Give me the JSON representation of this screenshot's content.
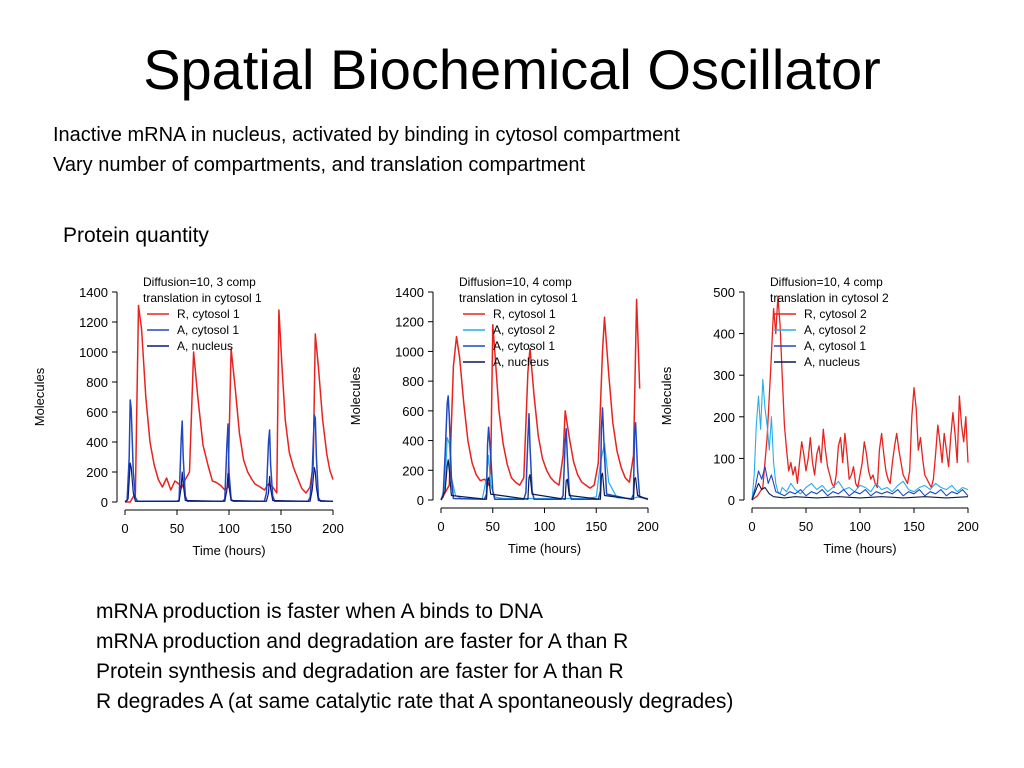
{
  "title": "Spatial Biochemical Oscillator",
  "intro_lines": [
    "Inactive mRNA in nucleus, activated by binding in cytosol compartment",
    "Vary number of compartments, and translation compartment"
  ],
  "section_label": "Protein quantity",
  "notes": [
    "mRNA production is faster when A binds to DNA",
    "mRNA production and degradation are faster for A than R",
    "Protein synthesis and degradation are faster for A than R",
    "R degrades A (at same catalytic rate that A spontaneously degrades)"
  ],
  "chart_data": [
    {
      "type": "line",
      "annotation": [
        "Diffusion=10, 3 comp",
        "translation in cytosol 1"
      ],
      "xlabel": "Time (hours)",
      "ylabel": "Molecules",
      "xlim": [
        0,
        200
      ],
      "ylim": [
        0,
        1400
      ],
      "xticks": [
        0,
        50,
        100,
        150,
        200
      ],
      "yticks": [
        0,
        200,
        400,
        600,
        800,
        1000,
        1200,
        1400
      ],
      "legend_position": "top-left",
      "series": [
        {
          "name": "R, cytosol 1",
          "color": "#e8231f",
          "width": 1.5,
          "x": [
            0,
            5,
            10,
            13,
            16,
            20,
            24,
            28,
            32,
            36,
            40,
            44,
            48,
            52,
            54,
            58,
            62,
            66,
            70,
            75,
            80,
            84,
            88,
            92,
            96,
            99,
            102,
            106,
            110,
            114,
            118,
            122,
            125,
            130,
            134,
            138,
            142,
            146,
            148,
            151,
            154,
            158,
            162,
            166,
            170,
            174,
            178,
            181,
            183,
            186,
            190,
            194,
            197,
            200
          ],
          "y": [
            0,
            0,
            60,
            1310,
            1150,
            700,
            400,
            250,
            150,
            100,
            160,
            80,
            140,
            120,
            90,
            150,
            200,
            1000,
            700,
            380,
            240,
            140,
            130,
            110,
            80,
            100,
            1020,
            760,
            460,
            280,
            200,
            150,
            120,
            100,
            80,
            120,
            100,
            60,
            1280,
            900,
            550,
            330,
            230,
            160,
            90,
            60,
            100,
            250,
            1120,
            900,
            550,
            320,
            210,
            150
          ]
        },
        {
          "name": "A, cytosol 1",
          "color": "#2048c0",
          "width": 1.5,
          "x": [
            0,
            2,
            4,
            5,
            6,
            8,
            10,
            12,
            50,
            52,
            54,
            55,
            56,
            58,
            60,
            94,
            96,
            98,
            99,
            100,
            102,
            104,
            130,
            134,
            136,
            138,
            139,
            140,
            142,
            144,
            176,
            178,
            180,
            182,
            183,
            184,
            186,
            188,
            200
          ],
          "y": [
            5,
            10,
            300,
            680,
            620,
            200,
            30,
            5,
            5,
            15,
            420,
            540,
            300,
            40,
            5,
            5,
            20,
            380,
            520,
            200,
            20,
            5,
            5,
            5,
            60,
            400,
            480,
            250,
            40,
            5,
            5,
            30,
            200,
            580,
            560,
            300,
            30,
            5,
            5
          ]
        },
        {
          "name": "A, nucleus",
          "color": "#0a1a80",
          "width": 1.2,
          "x": [
            0,
            3,
            5,
            6,
            8,
            10,
            52,
            54,
            55,
            56,
            58,
            96,
            98,
            99,
            100,
            102,
            136,
            138,
            139,
            140,
            142,
            178,
            180,
            182,
            183,
            184,
            186,
            200
          ],
          "y": [
            0,
            20,
            260,
            230,
            60,
            5,
            5,
            100,
            200,
            120,
            10,
            5,
            80,
            190,
            100,
            10,
            5,
            60,
            170,
            90,
            10,
            5,
            80,
            230,
            200,
            100,
            10,
            5
          ]
        }
      ]
    },
    {
      "type": "line",
      "annotation": [
        "Diffusion=10, 4 comp",
        "translation in cytosol 1"
      ],
      "xlabel": "Time (hours)",
      "ylabel": "Molecules",
      "xlim": [
        0,
        200
      ],
      "ylim": [
        0,
        1400
      ],
      "xticks": [
        0,
        50,
        100,
        150,
        200
      ],
      "yticks": [
        0,
        200,
        400,
        600,
        800,
        1000,
        1200,
        1400
      ],
      "legend_position": "top-left",
      "series": [
        {
          "name": "R, cytosol 1",
          "color": "#e8231f",
          "width": 1.5,
          "x": [
            0,
            8,
            12,
            15,
            18,
            22,
            26,
            30,
            34,
            38,
            42,
            46,
            48,
            50,
            52,
            56,
            60,
            64,
            68,
            72,
            76,
            80,
            84,
            86,
            90,
            94,
            98,
            102,
            106,
            110,
            114,
            118,
            120,
            124,
            128,
            132,
            136,
            140,
            144,
            148,
            152,
            156,
            158,
            162,
            166,
            170,
            174,
            178,
            182,
            186,
            189,
            192
          ],
          "y": [
            0,
            100,
            900,
            1100,
            960,
            650,
            400,
            250,
            170,
            130,
            140,
            100,
            200,
            1180,
            1000,
            600,
            380,
            240,
            150,
            120,
            100,
            150,
            860,
            1020,
            700,
            430,
            280,
            200,
            150,
            120,
            100,
            300,
            600,
            420,
            260,
            170,
            120,
            100,
            80,
            100,
            250,
            1000,
            1230,
            850,
            520,
            330,
            220,
            150,
            120,
            300,
            1350,
            750
          ]
        },
        {
          "name": "A, cytosol 2",
          "color": "#27aee8",
          "width": 1.2,
          "x": [
            0,
            4,
            6,
            8,
            10,
            14,
            20,
            40,
            44,
            46,
            48,
            52,
            60,
            100,
            120,
            140,
            150,
            154,
            158,
            162,
            170,
            185,
            190,
            200
          ],
          "y": [
            0,
            100,
            420,
            380,
            150,
            30,
            10,
            10,
            150,
            300,
            100,
            20,
            10,
            10,
            10,
            10,
            20,
            250,
            380,
            120,
            15,
            10,
            20,
            10
          ]
        },
        {
          "name": "A, cytosol 1",
          "color": "#2048c0",
          "width": 1.5,
          "x": [
            0,
            2,
            4,
            6,
            7,
            8,
            10,
            12,
            42,
            44,
            45,
            46,
            48,
            50,
            52,
            80,
            82,
            84,
            85,
            86,
            88,
            90,
            116,
            118,
            120,
            121,
            122,
            124,
            126,
            152,
            154,
            155,
            156,
            158,
            160,
            184,
            186,
            187,
            188,
            190,
            192,
            200
          ],
          "y": [
            5,
            20,
            300,
            650,
            700,
            560,
            150,
            10,
            5,
            40,
            380,
            490,
            300,
            60,
            5,
            5,
            50,
            420,
            580,
            360,
            60,
            5,
            5,
            30,
            400,
            480,
            300,
            50,
            5,
            5,
            60,
            480,
            620,
            300,
            40,
            5,
            40,
            450,
            520,
            200,
            20,
            5
          ]
        },
        {
          "name": "A, nucleus",
          "color": "#0a1a50",
          "width": 1.2,
          "x": [
            0,
            4,
            6,
            7,
            8,
            10,
            44,
            45,
            46,
            48,
            84,
            85,
            86,
            88,
            120,
            121,
            122,
            124,
            154,
            155,
            156,
            158,
            186,
            187,
            188,
            190,
            200
          ],
          "y": [
            0,
            60,
            230,
            270,
            200,
            30,
            5,
            130,
            150,
            40,
            5,
            150,
            170,
            40,
            5,
            130,
            140,
            30,
            5,
            160,
            180,
            30,
            5,
            140,
            150,
            30,
            5
          ]
        }
      ]
    },
    {
      "type": "line",
      "annotation": [
        "Diffusion=10, 4 comp",
        "translation in cytosol 2"
      ],
      "xlabel": "Time (hours)",
      "ylabel": "Molecules",
      "xlim": [
        0,
        200
      ],
      "ylim": [
        0,
        500
      ],
      "xticks": [
        0,
        50,
        100,
        150,
        200
      ],
      "yticks": [
        0,
        100,
        200,
        300,
        400,
        500
      ],
      "legend_position": "top-left",
      "series": [
        {
          "name": "R, cytosol 2",
          "color": "#e8231f",
          "width": 1.3,
          "x": [
            0,
            5,
            10,
            14,
            17,
            20,
            22,
            24,
            26,
            28,
            30,
            32,
            34,
            36,
            38,
            40,
            42,
            44,
            46,
            48,
            50,
            52,
            54,
            56,
            58,
            60,
            62,
            64,
            66,
            68,
            70,
            72,
            74,
            76,
            78,
            80,
            82,
            84,
            86,
            88,
            90,
            92,
            94,
            96,
            98,
            100,
            102,
            104,
            106,
            108,
            110,
            112,
            114,
            116,
            118,
            120,
            122,
            124,
            126,
            128,
            130,
            132,
            134,
            136,
            138,
            140,
            142,
            144,
            146,
            148,
            150,
            152,
            154,
            156,
            158,
            160,
            162,
            164,
            166,
            168,
            170,
            172,
            174,
            176,
            178,
            180,
            182,
            184,
            186,
            188,
            190,
            192,
            194,
            196,
            198,
            200
          ],
          "y": [
            0,
            10,
            30,
            150,
            300,
            460,
            400,
            490,
            420,
            300,
            180,
            120,
            70,
            90,
            60,
            80,
            40,
            90,
            140,
            110,
            70,
            100,
            150,
            90,
            60,
            110,
            130,
            90,
            170,
            120,
            80,
            60,
            40,
            30,
            60,
            130,
            150,
            90,
            160,
            110,
            50,
            60,
            80,
            40,
            30,
            60,
            90,
            140,
            110,
            70,
            50,
            60,
            40,
            30,
            120,
            160,
            110,
            70,
            50,
            40,
            90,
            130,
            160,
            120,
            90,
            60,
            50,
            40,
            70,
            200,
            270,
            220,
            120,
            150,
            100,
            60,
            50,
            40,
            30,
            50,
            110,
            180,
            140,
            90,
            160,
            120,
            80,
            150,
            210,
            160,
            90,
            250,
            180,
            140,
            200,
            90
          ]
        },
        {
          "name": "A, cytosol 2",
          "color": "#27aee8",
          "width": 1.1,
          "x": [
            0,
            2,
            4,
            6,
            8,
            10,
            12,
            14,
            16,
            18,
            20,
            22,
            24,
            26,
            28,
            32,
            36,
            40,
            45,
            50,
            55,
            60,
            65,
            70,
            75,
            80,
            85,
            90,
            95,
            100,
            105,
            110,
            115,
            120,
            125,
            130,
            135,
            140,
            145,
            150,
            155,
            160,
            165,
            170,
            175,
            180,
            185,
            190,
            195,
            200
          ],
          "y": [
            0,
            60,
            180,
            250,
            170,
            290,
            220,
            180,
            120,
            200,
            90,
            40,
            20,
            15,
            30,
            20,
            40,
            25,
            15,
            30,
            40,
            25,
            35,
            20,
            30,
            45,
            25,
            30,
            20,
            35,
            30,
            20,
            40,
            25,
            30,
            20,
            35,
            45,
            25,
            20,
            30,
            35,
            25,
            40,
            30,
            25,
            35,
            20,
            30,
            25
          ]
        },
        {
          "name": "A, cytosol 1",
          "color": "#2048c0",
          "width": 1.1,
          "x": [
            0,
            3,
            6,
            9,
            12,
            15,
            18,
            22,
            26,
            30,
            35,
            40,
            45,
            50,
            55,
            60,
            65,
            70,
            75,
            80,
            85,
            90,
            95,
            100,
            105,
            110,
            115,
            120,
            125,
            130,
            135,
            140,
            145,
            150,
            155,
            160,
            165,
            170,
            175,
            180,
            185,
            190,
            195,
            200
          ],
          "y": [
            0,
            30,
            70,
            50,
            80,
            40,
            60,
            20,
            15,
            10,
            20,
            15,
            25,
            10,
            20,
            15,
            25,
            10,
            20,
            15,
            25,
            10,
            20,
            15,
            25,
            10,
            20,
            15,
            20,
            15,
            25,
            10,
            20,
            15,
            25,
            10,
            20,
            15,
            25,
            10,
            20,
            15,
            25,
            10
          ]
        },
        {
          "name": "A, nucleus",
          "color": "#0a1a50",
          "width": 1.1,
          "x": [
            0,
            3,
            6,
            9,
            12,
            16,
            20,
            30,
            40,
            60,
            80,
            100,
            120,
            140,
            160,
            180,
            200
          ],
          "y": [
            0,
            20,
            40,
            25,
            30,
            15,
            8,
            5,
            8,
            5,
            8,
            5,
            8,
            5,
            8,
            5,
            8
          ]
        }
      ]
    }
  ]
}
